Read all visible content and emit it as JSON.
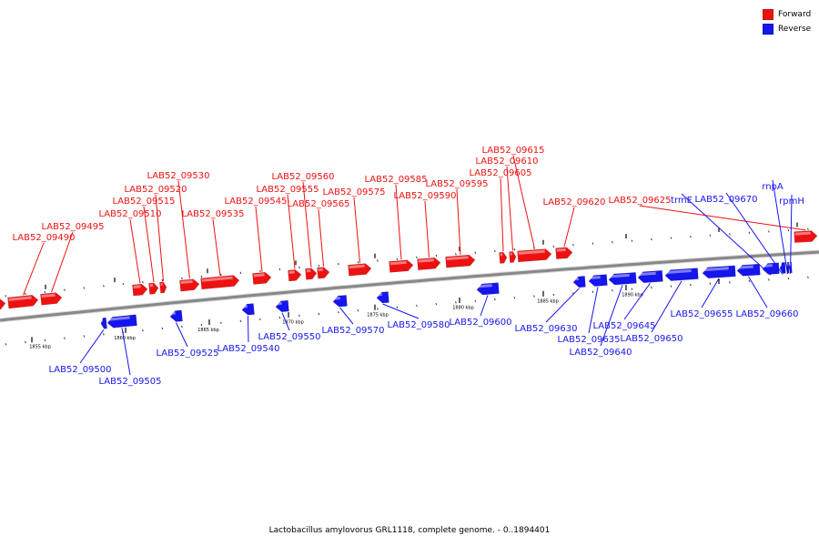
{
  "colors": {
    "forward": "#ee1111",
    "reverse": "#1515ee",
    "backbone": "#888888"
  },
  "legend": {
    "forward": "Forward",
    "reverse": "Reverse"
  },
  "caption": "Lactobacillus amylovorus GRL1118, complete genome. - 0..1894401",
  "ticks": [
    "1855 kbp",
    "1860 kbp",
    "1865 kbp",
    "1870 kbp",
    "1875 kbp",
    "1880 kbp",
    "1885 kbp",
    "1890 kbp"
  ],
  "forward_genes": [
    "LAB52_09490",
    "LAB52_09495",
    "LAB52_09510",
    "LAB52_09515",
    "LAB52_09520",
    "LAB52_09530",
    "LAB52_09535",
    "LAB52_09545",
    "LAB52_09555",
    "LAB52_09560",
    "LAB52_09565",
    "LAB52_09575",
    "LAB52_09585",
    "LAB52_09590",
    "LAB52_09595",
    "LAB52_09605",
    "LAB52_09610",
    "LAB52_09615",
    "LAB52_09620",
    "LAB52_09625"
  ],
  "reverse_genes": [
    "LAB52_09500",
    "LAB52_09505",
    "LAB52_09525",
    "LAB52_09540",
    "LAB52_09550",
    "LAB52_09570",
    "LAB52_09580",
    "LAB52_09600",
    "LAB52_09630",
    "LAB52_09635",
    "LAB52_09640",
    "LAB52_09645",
    "LAB52_09650",
    "LAB52_09655",
    "LAB52_09660",
    "trmE",
    "LAB52_09670",
    "rnpA",
    "rpmH"
  ]
}
